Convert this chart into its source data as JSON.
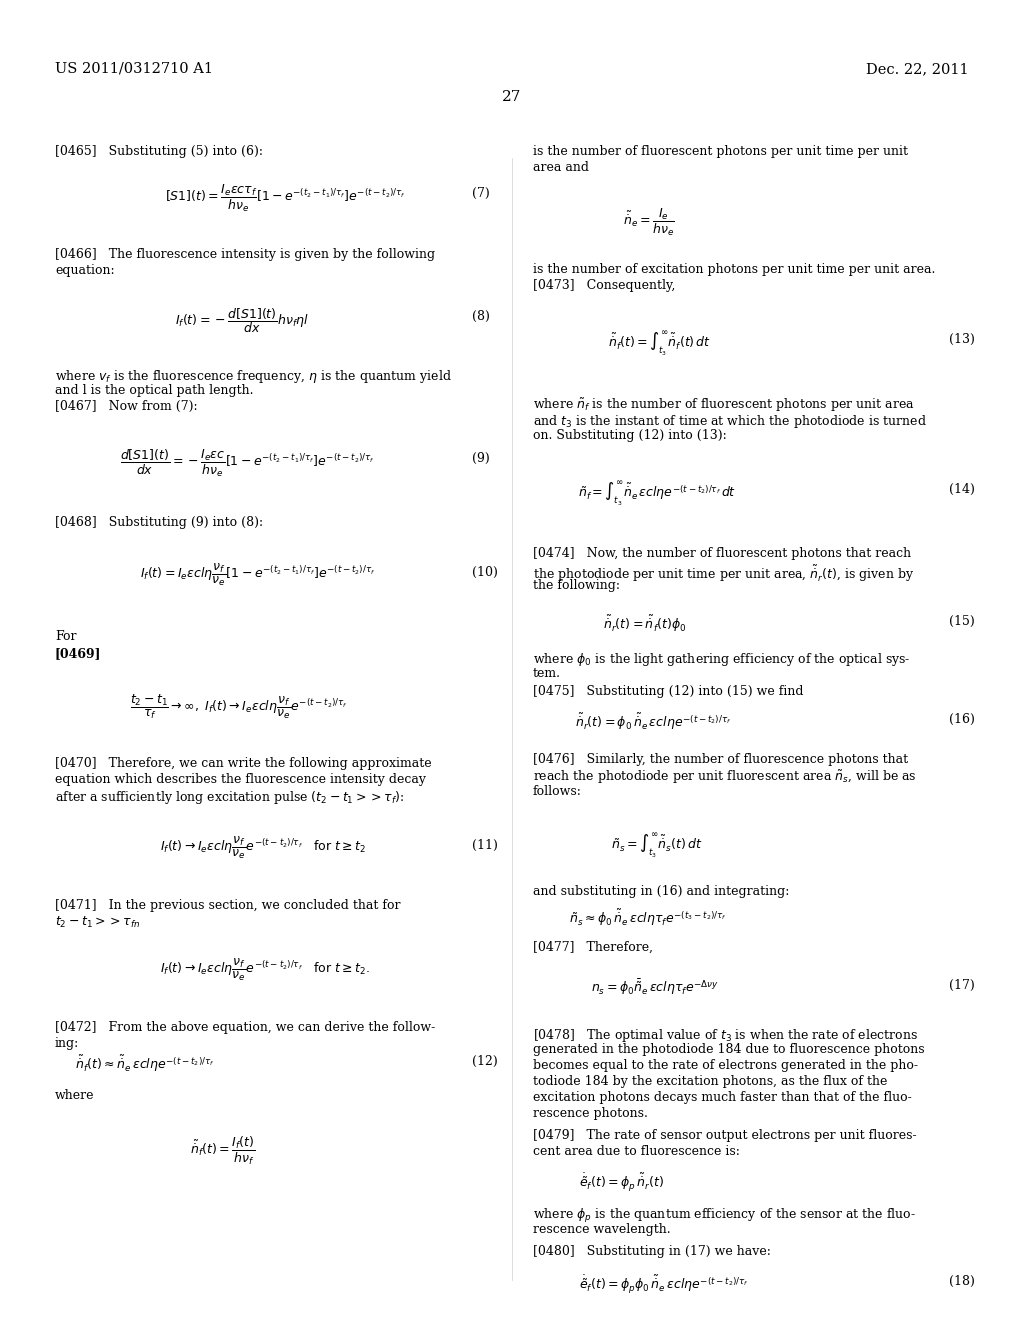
{
  "background_color": "#ffffff",
  "header_left": "US 2011/0312710 A1",
  "header_right": "Dec. 22, 2011",
  "page_number": "27",
  "figsize": [
    10.24,
    13.2
  ],
  "dpi": 100
}
